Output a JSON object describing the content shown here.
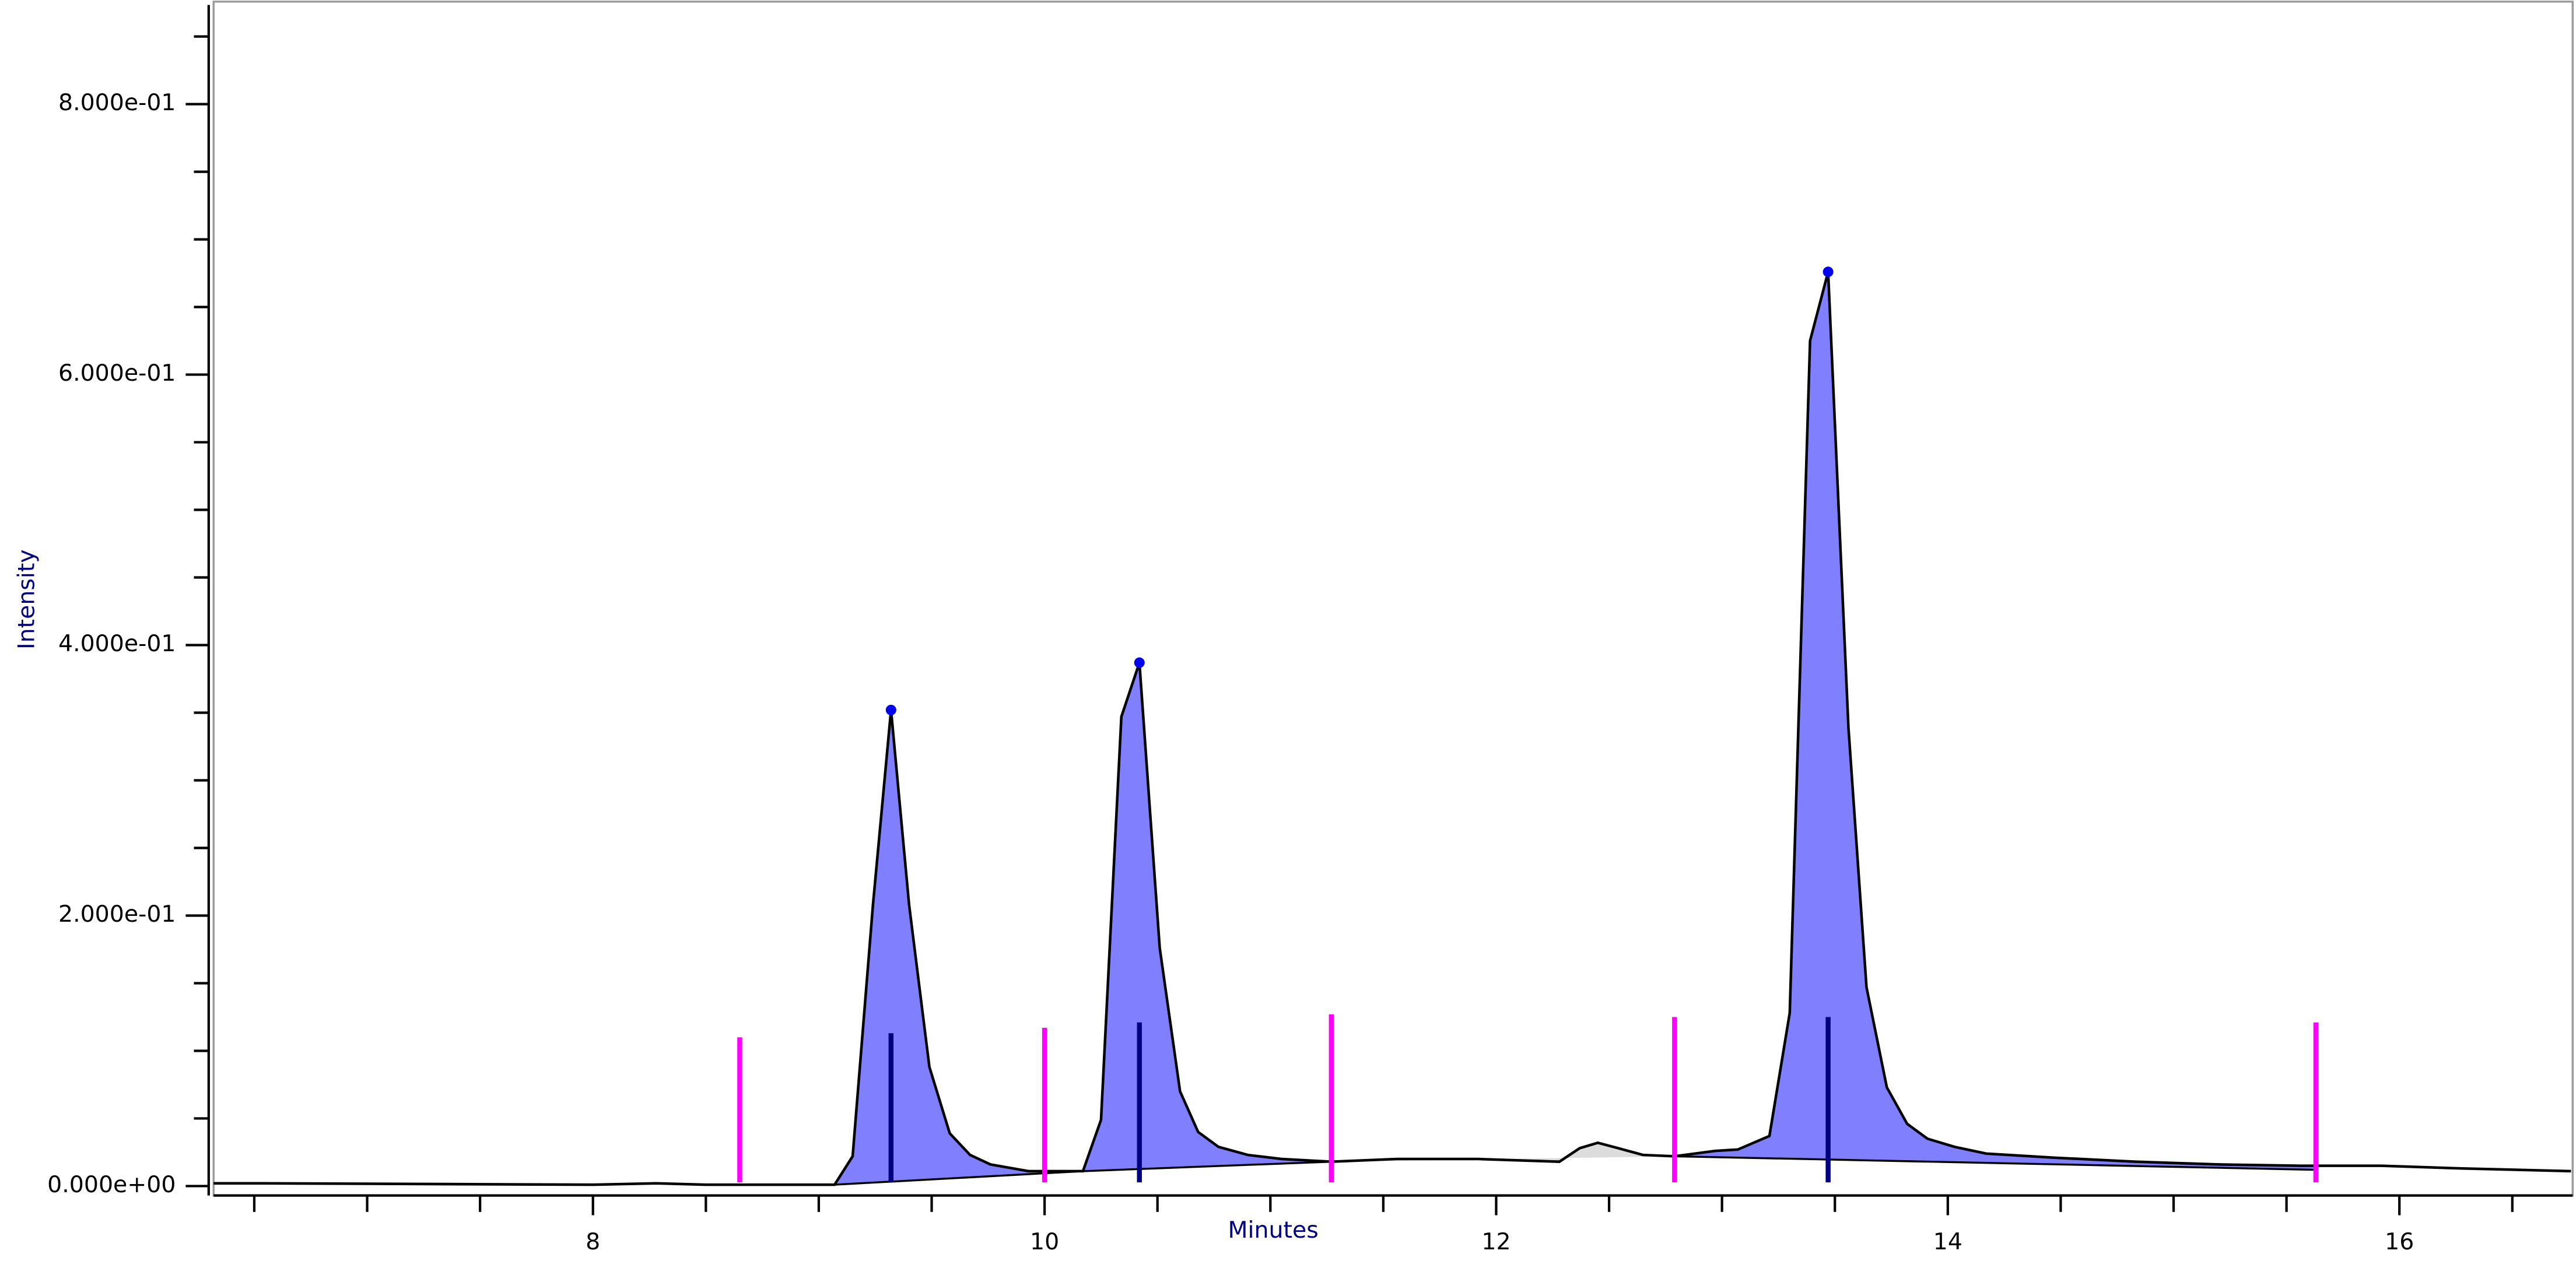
{
  "chart_data": {
    "type": "chromatogram",
    "x_label": "Minutes",
    "y_label": "Intensity",
    "xlim": [
      6.32,
      16.76
    ],
    "ylim": [
      -0.007,
      0.877
    ],
    "xticks": [
      8,
      10,
      12,
      14,
      16
    ],
    "xminorticks": [
      6.5,
      7,
      7.5,
      8.5,
      9,
      9.5,
      10.5,
      11,
      11.5,
      12.5,
      13,
      13.5,
      14.5,
      15,
      15.5,
      16.5
    ],
    "yticks": [
      {
        "value": 0,
        "label": "0.000e+00"
      },
      {
        "value": 0.2,
        "label": "2.000e-01"
      },
      {
        "value": 0.4,
        "label": "4.000e-01"
      },
      {
        "value": 0.6,
        "label": "6.000e-01"
      },
      {
        "value": 0.8,
        "label": "8.000e-01"
      }
    ],
    "yminorticks": [
      0.05,
      0.1,
      0.15,
      0.25,
      0.3,
      0.35,
      0.45,
      0.5,
      0.55,
      0.65,
      0.7,
      0.75,
      0.85
    ],
    "series": [
      {
        "color": "#000000",
        "x": [
          6.32,
          6.54,
          8.0,
          8.28,
          8.5,
          9.07,
          9.15,
          9.24,
          9.32,
          9.4,
          9.49,
          9.58,
          9.67,
          9.76,
          9.93,
          10.17,
          10.25,
          10.34,
          10.42,
          10.51,
          10.6,
          10.68,
          10.77,
          10.9,
          11.05,
          11.27,
          11.56,
          11.92,
          12.28,
          12.37,
          12.45,
          12.54,
          12.65,
          12.79,
          12.97,
          13.07,
          13.21,
          13.3,
          13.39,
          13.47,
          13.56,
          13.64,
          13.73,
          13.82,
          13.91,
          14.03,
          14.17,
          14.47,
          14.83,
          15.19,
          15.56,
          15.92,
          16.28,
          16.76
        ],
        "values": [
          0.002,
          0.002,
          0.001,
          0.002,
          0.001,
          0.001,
          0.022,
          0.208,
          0.352,
          0.208,
          0.088,
          0.039,
          0.023,
          0.016,
          0.011,
          0.011,
          0.049,
          0.347,
          0.387,
          0.176,
          0.07,
          0.04,
          0.029,
          0.023,
          0.02,
          0.018,
          0.02,
          0.02,
          0.018,
          0.028,
          0.032,
          0.028,
          0.023,
          0.022,
          0.026,
          0.027,
          0.037,
          0.128,
          0.625,
          0.676,
          0.339,
          0.147,
          0.073,
          0.046,
          0.035,
          0.029,
          0.024,
          0.021,
          0.018,
          0.016,
          0.015,
          0.015,
          0.013,
          0.011
        ]
      }
    ],
    "peaks": [
      {
        "start": [
          9.07,
          0.001
        ],
        "end": [
          10.17,
          0.011
        ],
        "apex": [
          9.32,
          0.352
        ],
        "color": "#8080ff"
      },
      {
        "start": [
          10.17,
          0.011
        ],
        "end": [
          11.27,
          0.018
        ],
        "apex": [
          10.42,
          0.387
        ],
        "color": "#8080ff"
      },
      {
        "start": [
          12.79,
          0.022
        ],
        "end": [
          15.63,
          0.012
        ],
        "apex": [
          13.47,
          0.676
        ],
        "color": "#8080ff"
      }
    ],
    "unassigned_regions": [
      {
        "start": [
          11.27,
          0.018
        ],
        "end": [
          12.79,
          0.022
        ],
        "color": "#dcdcdc"
      }
    ],
    "apex_color": "#0000ee",
    "boundary_markers": {
      "color": "#ff00ff",
      "x": [
        8.65,
        10.0,
        11.27,
        12.79,
        15.63
      ],
      "top": [
        0.11,
        0.117,
        0.127,
        0.125,
        0.121
      ]
    },
    "apex_markers": {
      "color": "#000080",
      "x": [
        9.32,
        10.42,
        13.47
      ],
      "top": [
        0.113,
        0.121,
        0.125
      ]
    }
  }
}
